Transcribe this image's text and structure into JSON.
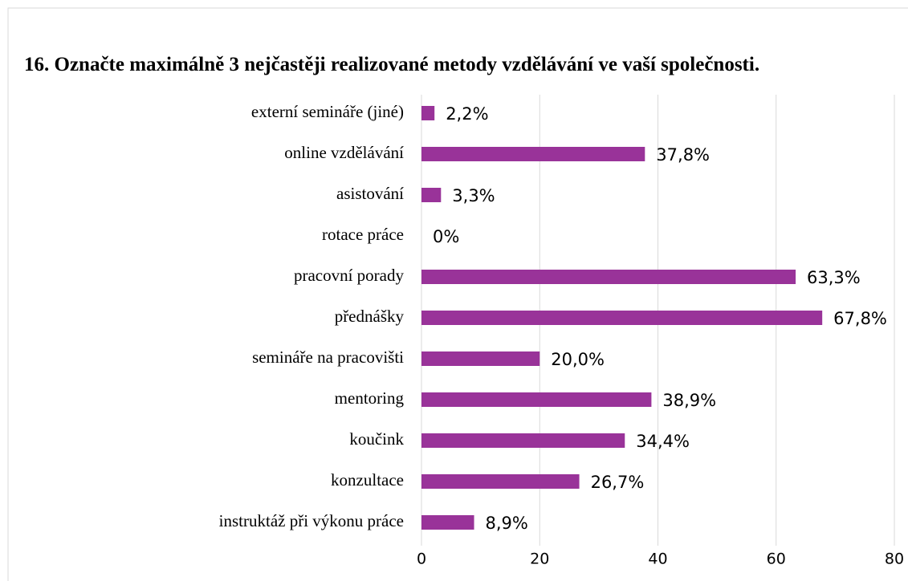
{
  "chart_data": {
    "type": "hbar",
    "title": "16. Označte maximálně 3 nejčastěji realizované metody vzdělávání ve vaší společnosti.",
    "categories": [
      "externí semináře (jiné)",
      "online vzdělávání",
      "asistování ",
      "rotace práce",
      "pracovní porady",
      "přednášky",
      "semináře na pracovišti",
      "mentoring",
      "koučink",
      "konzultace",
      "instruktáž při výkonu práce"
    ],
    "values": [
      2.2,
      37.8,
      3.3,
      0,
      63.3,
      67.8,
      20.0,
      38.9,
      34.4,
      26.7,
      8.9
    ],
    "value_labels": [
      "2,2%",
      "37,8%",
      "3,3%",
      "0%",
      "63,3%",
      "67,8%",
      "20,0%",
      "38,9%",
      "34,4%",
      "26,7%",
      "8,9%"
    ],
    "color": "#993399",
    "xlim": [
      0,
      80
    ],
    "xticks": [
      0,
      20,
      40,
      60,
      80
    ],
    "grid": true
  }
}
